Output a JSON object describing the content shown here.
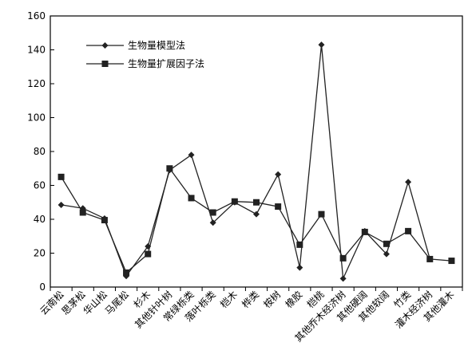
{
  "chart_data": {
    "type": "line",
    "categories": [
      "云南松",
      "思茅松",
      "华山松",
      "马尾松",
      "杉木",
      "其他针叶树",
      "常绿栎类",
      "落叶栎类",
      "桤木",
      "桦类",
      "桉树",
      "橡胶",
      "桤桃",
      "其他乔木经济树",
      "其他硬阔",
      "其他软阔",
      "竹类",
      "灌木经济树",
      "其他灌木"
    ],
    "series": [
      {
        "name": "生物量模型法",
        "marker": "diamond",
        "values": [
          48.5,
          46.5,
          40.5,
          6.5,
          24,
          69,
          78,
          38,
          50,
          43,
          66.5,
          11.5,
          143,
          5,
          33,
          19.5,
          62,
          16.5,
          null
        ]
      },
      {
        "name": "生物量扩展因子法",
        "marker": "square",
        "values": [
          65,
          44,
          39.5,
          8.5,
          19.5,
          70,
          52.5,
          44,
          50.5,
          50,
          47.5,
          25,
          43,
          17,
          32.5,
          25.5,
          33,
          16.5,
          15.5
        ]
      }
    ],
    "ylim": [
      0,
      160
    ],
    "yticks": [
      0,
      20,
      40,
      60,
      80,
      100,
      120,
      140,
      160
    ],
    "grid": false,
    "legend_position": "top-left",
    "title": "",
    "xlabel": "",
    "ylabel": ""
  }
}
